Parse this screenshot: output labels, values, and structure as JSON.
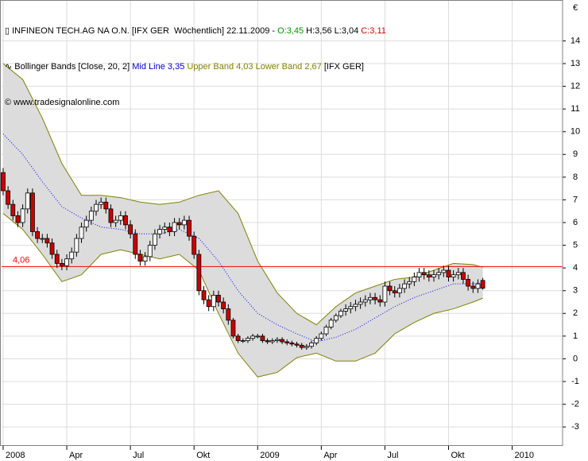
{
  "chart_data": {
    "type": "candlestick",
    "header": {
      "title": "INFINEON TECH.AG NA O.N. [IFX GER  Wöchentlich] 22.11.2009 - ",
      "open_text": "O:3,45",
      "hl_text": " H:3,56 L:3,04 ",
      "close_text": "C:3,11",
      "indicator": "Bollinger Bands [Close, 20, 2] ",
      "mid_text": "Mid Line 3,35",
      "bands_text": " Upper Band 4,03 Lower Band 2,67",
      "symbol_text": " [IFX GER]",
      "source": "© www.tradesignalonline.com",
      "currency": "€"
    },
    "x": [
      0,
      1,
      2,
      3,
      4,
      5,
      6,
      7,
      8,
      9,
      10,
      11,
      12,
      13,
      14,
      15,
      16,
      17,
      18,
      19,
      20,
      21,
      22,
      23,
      24,
      25,
      26,
      27,
      28,
      29,
      30,
      31,
      32,
      33,
      34,
      35,
      36,
      37,
      38,
      39,
      40,
      41,
      42,
      43,
      44,
      45,
      46,
      47,
      48,
      49,
      50,
      51,
      52,
      53,
      54,
      55,
      56,
      57,
      58,
      59,
      60,
      61,
      62,
      63,
      64,
      65,
      66,
      67,
      68,
      69,
      70,
      71,
      72,
      73,
      74,
      75,
      76,
      77,
      78,
      79,
      80,
      81,
      82,
      83,
      84,
      85,
      86,
      87,
      88,
      89,
      90,
      91,
      92,
      93,
      94,
      95,
      96,
      97,
      98
    ],
    "open": [
      8.2,
      7.4,
      6.8,
      6.3,
      6.0,
      6.6,
      7.3,
      5.6,
      5.3,
      5.3,
      5.1,
      4.6,
      4.2,
      4.1,
      4.4,
      4.7,
      5.3,
      5.8,
      6.1,
      6.5,
      6.8,
      6.9,
      6.6,
      6.0,
      6.1,
      6.3,
      5.9,
      5.5,
      4.6,
      4.3,
      4.5,
      5.0,
      5.5,
      5.7,
      5.8,
      5.6,
      6.0,
      5.9,
      6.1,
      5.4,
      4.6,
      3.0,
      2.6,
      2.3,
      2.8,
      2.5,
      2.2,
      1.7,
      1.0,
      0.8,
      0.8,
      0.9,
      1.0,
      1.0,
      0.8,
      0.75,
      0.8,
      0.85,
      0.75,
      0.7,
      0.65,
      0.6,
      0.5,
      0.55,
      0.7,
      0.9,
      1.1,
      1.4,
      1.7,
      1.9,
      2.1,
      2.2,
      2.3,
      2.4,
      2.5,
      2.6,
      2.7,
      2.6,
      2.5,
      3.2,
      3.0,
      2.9,
      3.1,
      3.3,
      3.4,
      3.6,
      3.8,
      3.7,
      3.6,
      3.7,
      3.8,
      3.9,
      3.6,
      3.7,
      3.8,
      3.5,
      3.2,
      3.1,
      3.45
    ],
    "high": [
      8.4,
      7.6,
      7.0,
      6.5,
      6.8,
      7.5,
      7.5,
      5.8,
      5.5,
      5.5,
      5.3,
      4.8,
      4.4,
      4.6,
      4.9,
      5.5,
      6.0,
      6.3,
      6.7,
      7.0,
      7.1,
      7.1,
      6.8,
      6.3,
      6.5,
      6.5,
      6.1,
      5.7,
      4.8,
      4.7,
      5.2,
      5.7,
      5.9,
      6.0,
      6.0,
      6.2,
      6.2,
      6.3,
      6.3,
      5.6,
      4.8,
      3.2,
      2.8,
      3.0,
      3.0,
      2.7,
      2.4,
      1.8,
      1.1,
      0.9,
      1.0,
      1.1,
      1.1,
      1.1,
      0.9,
      0.9,
      0.95,
      0.95,
      0.85,
      0.8,
      0.75,
      0.7,
      0.65,
      0.8,
      1.0,
      1.2,
      1.5,
      1.8,
      2.0,
      2.2,
      2.4,
      2.5,
      2.6,
      2.7,
      2.8,
      2.9,
      2.9,
      2.8,
      3.4,
      3.4,
      3.2,
      3.3,
      3.5,
      3.6,
      3.8,
      4.0,
      4.0,
      3.9,
      3.9,
      4.0,
      4.1,
      4.1,
      3.9,
      4.0,
      4.0,
      3.7,
      3.4,
      3.5,
      3.56
    ],
    "low": [
      7.2,
      6.6,
      6.1,
      5.8,
      5.8,
      6.4,
      5.4,
      5.1,
      5.1,
      4.9,
      4.4,
      4.0,
      3.9,
      3.9,
      4.2,
      4.5,
      5.1,
      5.6,
      5.9,
      6.3,
      6.6,
      6.4,
      5.8,
      5.8,
      5.9,
      5.7,
      5.3,
      4.4,
      4.1,
      4.1,
      4.3,
      4.8,
      5.3,
      5.5,
      5.4,
      5.4,
      5.7,
      5.7,
      5.2,
      4.4,
      2.8,
      2.4,
      2.1,
      2.1,
      2.3,
      2.0,
      1.5,
      0.9,
      0.7,
      0.7,
      0.7,
      0.8,
      0.9,
      0.7,
      0.65,
      0.65,
      0.7,
      0.65,
      0.6,
      0.55,
      0.5,
      0.4,
      0.4,
      0.45,
      0.6,
      0.8,
      1.0,
      1.3,
      1.6,
      1.8,
      1.9,
      2.0,
      2.1,
      2.2,
      2.3,
      2.4,
      2.4,
      2.3,
      2.3,
      2.8,
      2.7,
      2.7,
      2.9,
      3.1,
      3.2,
      3.4,
      3.5,
      3.4,
      3.4,
      3.5,
      3.6,
      3.4,
      3.4,
      3.5,
      3.3,
      3.0,
      2.9,
      2.9,
      3.04
    ],
    "close": [
      7.4,
      6.8,
      6.3,
      6.0,
      6.6,
      7.3,
      5.6,
      5.3,
      5.3,
      5.1,
      4.6,
      4.2,
      4.1,
      4.4,
      4.7,
      5.3,
      5.8,
      6.1,
      6.5,
      6.8,
      6.9,
      6.6,
      6.0,
      6.1,
      6.3,
      5.9,
      5.5,
      4.6,
      4.3,
      4.5,
      5.0,
      5.5,
      5.7,
      5.8,
      5.6,
      6.0,
      5.9,
      6.1,
      5.4,
      4.6,
      3.0,
      2.6,
      2.3,
      2.8,
      2.5,
      2.2,
      1.7,
      1.0,
      0.8,
      0.8,
      0.9,
      1.0,
      1.0,
      0.8,
      0.75,
      0.8,
      0.85,
      0.75,
      0.7,
      0.65,
      0.6,
      0.5,
      0.55,
      0.7,
      0.9,
      1.1,
      1.4,
      1.7,
      1.9,
      2.1,
      2.2,
      2.3,
      2.4,
      2.5,
      2.6,
      2.7,
      2.6,
      2.5,
      3.2,
      3.0,
      2.9,
      3.1,
      3.3,
      3.4,
      3.6,
      3.8,
      3.7,
      3.6,
      3.7,
      3.8,
      3.9,
      3.6,
      3.7,
      3.8,
      3.5,
      3.2,
      3.1,
      3.3,
      3.11
    ],
    "up_color": "#ffffff",
    "down_color": "#cc0000",
    "bands": {
      "x": [
        0,
        4,
        8,
        12,
        16,
        20,
        24,
        28,
        32,
        36,
        40,
        44,
        48,
        52,
        56,
        60,
        64,
        68,
        72,
        76,
        80,
        84,
        88,
        92,
        96,
        98
      ],
      "upper": [
        13.0,
        12.3,
        10.6,
        8.6,
        7.2,
        7.2,
        7.1,
        6.9,
        6.8,
        6.9,
        7.2,
        7.4,
        6.4,
        4.3,
        2.9,
        2.0,
        1.5,
        2.3,
        2.9,
        3.2,
        3.5,
        3.6,
        3.9,
        4.2,
        4.15,
        4.03
      ],
      "mid": [
        9.9,
        9.0,
        7.8,
        6.7,
        6.2,
        5.8,
        5.7,
        5.5,
        5.5,
        5.7,
        5.3,
        4.3,
        3.0,
        2.0,
        1.5,
        1.1,
        0.75,
        0.95,
        1.3,
        1.8,
        2.3,
        2.7,
        3.0,
        3.3,
        3.3,
        3.35
      ],
      "lower": [
        6.4,
        5.7,
        4.6,
        3.4,
        3.7,
        4.6,
        4.8,
        4.6,
        4.4,
        4.6,
        3.9,
        2.0,
        0.25,
        -0.8,
        -0.6,
        0.05,
        0.25,
        -0.1,
        -0.1,
        0.25,
        1.1,
        1.6,
        2.0,
        2.2,
        2.5,
        2.67
      ],
      "band_color": "#808000",
      "mid_color": "#0000ff",
      "fill": "#dcdcdc"
    },
    "hline": {
      "value": 4.06,
      "label": "4,06",
      "color": "#ff0000"
    },
    "xlim": [
      -0.32,
      114.3
    ],
    "xticks": [
      {
        "value": 0,
        "label": "2008"
      },
      {
        "value": 13,
        "label": "Apr"
      },
      {
        "value": 26,
        "label": "Jul"
      },
      {
        "value": 39,
        "label": "Okt"
      },
      {
        "value": 52,
        "label": "2009"
      },
      {
        "value": 65,
        "label": "Apr"
      },
      {
        "value": 78,
        "label": "Jul"
      },
      {
        "value": 91,
        "label": "Okt"
      },
      {
        "value": 104,
        "label": "2010"
      }
    ],
    "ylim": [
      -3.8,
      15.8
    ],
    "yticks": [
      -3,
      -2,
      -1,
      0,
      1,
      2,
      3,
      4,
      5,
      6,
      7,
      8,
      9,
      10,
      11,
      12,
      13,
      14
    ],
    "grid": true
  }
}
